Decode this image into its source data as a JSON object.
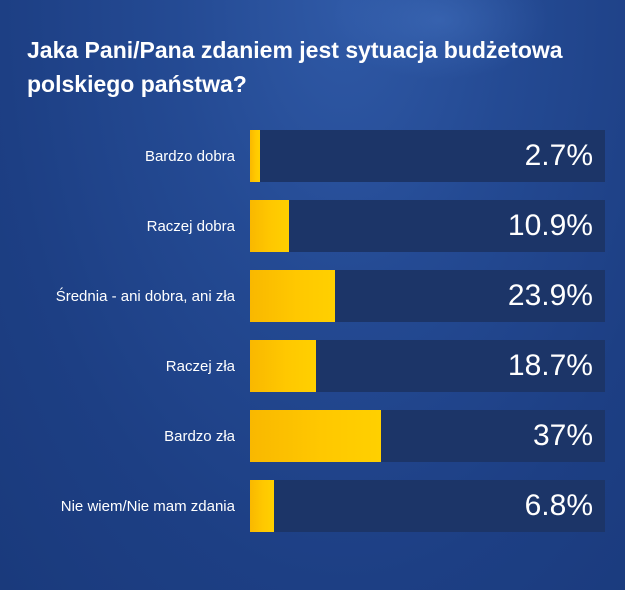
{
  "title": "Jaka Pani/Pana zdaniem jest sytuacja budżetowa polskiego państwa?",
  "colors": {
    "background": "#1f4289",
    "track": "#1c3568",
    "bar": "#ffc800",
    "text": "#ffffff"
  },
  "chart_data": {
    "type": "bar",
    "orientation": "horizontal",
    "title": "Jaka Pani/Pana zdaniem jest sytuacja budżetowa polskiego państwa?",
    "categories": [
      "Bardzo dobra",
      "Raczej dobra",
      "Średnia - ani dobra, ani zła",
      "Raczej zła",
      "Bardzo zła",
      "Nie wiem/Nie mam zdania"
    ],
    "values": [
      2.7,
      10.9,
      23.9,
      18.7,
      37,
      6.8
    ],
    "value_labels": [
      "2.7%",
      "10.9%",
      "23.9%",
      "18.7%",
      "37%",
      "6.8%"
    ],
    "unit": "%",
    "xlim": [
      0,
      100
    ],
    "grid": false,
    "legend": "none"
  }
}
